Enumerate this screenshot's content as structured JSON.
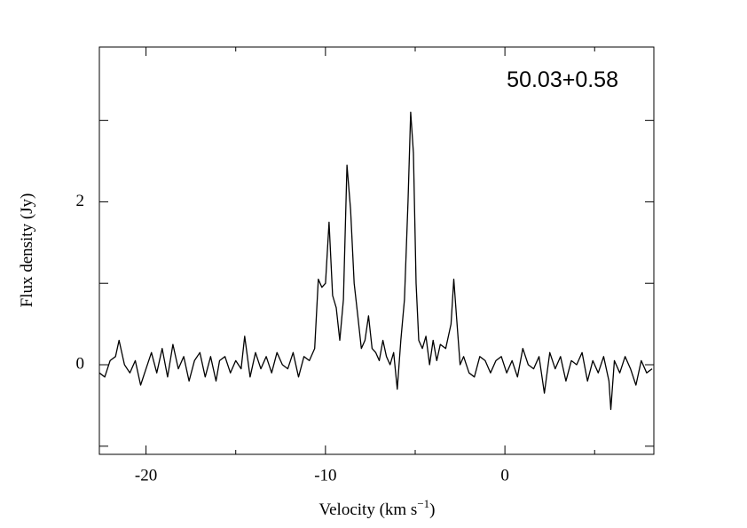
{
  "chart_data": {
    "type": "line",
    "annotation": "50.03+0.58",
    "xlabel": [
      "Velocity (km s",
      "−1",
      ")"
    ],
    "ylabel": "Flux density (Jy)",
    "xlim": [
      -22.6,
      8.3
    ],
    "ylim": [
      -1.1,
      3.9
    ],
    "xticks": [
      -20,
      -10,
      0
    ],
    "xticks_minor": [
      -15,
      -5,
      5
    ],
    "yticks": [
      0,
      2
    ],
    "yticks_minor": [
      -1,
      1,
      3
    ],
    "color": "#000000",
    "series": [
      {
        "name": "50.03+0.58",
        "x": [
          -22.6,
          -22.3,
          -22.0,
          -21.7,
          -21.5,
          -21.2,
          -20.9,
          -20.6,
          -20.3,
          -20.0,
          -19.7,
          -19.4,
          -19.1,
          -18.8,
          -18.5,
          -18.2,
          -17.9,
          -17.6,
          -17.3,
          -17.0,
          -16.7,
          -16.4,
          -16.1,
          -15.9,
          -15.6,
          -15.3,
          -15.0,
          -14.7,
          -14.5,
          -14.2,
          -13.9,
          -13.6,
          -13.3,
          -13.0,
          -12.7,
          -12.4,
          -12.1,
          -11.8,
          -11.5,
          -11.2,
          -10.9,
          -10.6,
          -10.4,
          -10.2,
          -10.0,
          -9.8,
          -9.6,
          -9.4,
          -9.2,
          -9.0,
          -8.8,
          -8.6,
          -8.4,
          -8.2,
          -8.0,
          -7.8,
          -7.6,
          -7.4,
          -7.2,
          -7.0,
          -6.8,
          -6.6,
          -6.4,
          -6.2,
          -6.0,
          -5.8,
          -5.6,
          -5.4,
          -5.25,
          -5.1,
          -4.95,
          -4.8,
          -4.6,
          -4.4,
          -4.2,
          -4.0,
          -3.8,
          -3.6,
          -3.3,
          -3.0,
          -2.85,
          -2.7,
          -2.5,
          -2.3,
          -2.0,
          -1.7,
          -1.4,
          -1.1,
          -0.8,
          -0.5,
          -0.2,
          0.1,
          0.4,
          0.7,
          1.0,
          1.3,
          1.6,
          1.9,
          2.2,
          2.5,
          2.8,
          3.1,
          3.4,
          3.7,
          4.0,
          4.3,
          4.6,
          4.9,
          5.2,
          5.5,
          5.8,
          5.9,
          6.1,
          6.4,
          6.7,
          7.0,
          7.3,
          7.6,
          7.9,
          8.2
        ],
        "values": [
          -0.1,
          -0.15,
          0.05,
          0.1,
          0.3,
          0.0,
          -0.1,
          0.05,
          -0.25,
          -0.05,
          0.15,
          -0.1,
          0.2,
          -0.15,
          0.25,
          -0.05,
          0.1,
          -0.2,
          0.05,
          0.15,
          -0.15,
          0.1,
          -0.2,
          0.05,
          0.1,
          -0.1,
          0.05,
          -0.05,
          0.35,
          -0.15,
          0.15,
          -0.05,
          0.1,
          -0.1,
          0.15,
          0.0,
          -0.05,
          0.15,
          -0.15,
          0.1,
          0.05,
          0.2,
          1.05,
          0.95,
          1.0,
          1.75,
          0.85,
          0.7,
          0.3,
          0.8,
          2.45,
          1.9,
          1.0,
          0.6,
          0.2,
          0.3,
          0.6,
          0.2,
          0.15,
          0.05,
          0.3,
          0.1,
          0.0,
          0.15,
          -0.3,
          0.3,
          0.8,
          2.0,
          3.1,
          2.6,
          1.0,
          0.3,
          0.2,
          0.35,
          0.0,
          0.3,
          0.05,
          0.25,
          0.2,
          0.5,
          1.05,
          0.6,
          0.0,
          0.1,
          -0.1,
          -0.15,
          0.1,
          0.05,
          -0.1,
          0.05,
          0.1,
          -0.1,
          0.05,
          -0.15,
          0.2,
          0.0,
          -0.05,
          0.1,
          -0.35,
          0.15,
          -0.05,
          0.1,
          -0.2,
          0.05,
          0.0,
          0.15,
          -0.2,
          0.05,
          -0.1,
          0.1,
          -0.2,
          -0.55,
          0.05,
          -0.1,
          0.1,
          -0.05,
          -0.25,
          0.05,
          -0.1,
          -0.05
        ]
      }
    ]
  }
}
